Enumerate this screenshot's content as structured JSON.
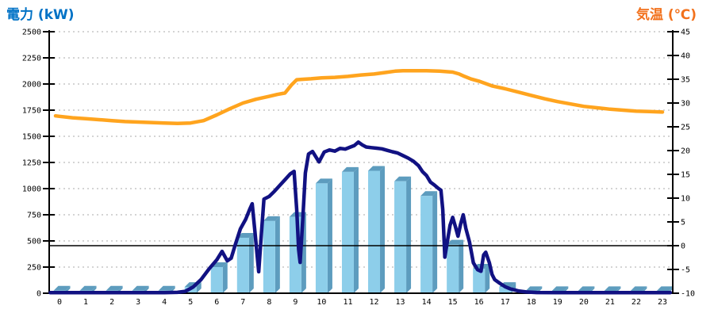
{
  "chart_data": {
    "type": "combo",
    "title": "",
    "left_axis": {
      "title": "電力 (kW)",
      "min": 0,
      "max": 2500,
      "step": 250,
      "tick_labels": [
        "0",
        "250",
        "500",
        "750",
        "1000",
        "1250",
        "1500",
        "1750",
        "2000",
        "2250",
        "2500"
      ]
    },
    "right_axis": {
      "title": "気温 (℃)",
      "min": -10,
      "max": 45,
      "step": 5,
      "tick_labels": [
        "-10",
        "-5",
        "0",
        "5",
        "10",
        "15",
        "20",
        "25",
        "30",
        "35",
        "40",
        "45"
      ]
    },
    "x_axis": {
      "tick_labels": [
        "0",
        "1",
        "2",
        "3",
        "4",
        "5",
        "6",
        "7",
        "8",
        "9",
        "10",
        "11",
        "12",
        "13",
        "14",
        "15",
        "16",
        "17",
        "18",
        "19",
        "20",
        "21",
        "22",
        "23"
      ]
    },
    "grid": {
      "on": true,
      "dashed": true
    },
    "zero_celsius_reference_line": 0,
    "series": [
      {
        "name": "power-bars-kw",
        "type": "bar",
        "axis": "left",
        "values": [
          25,
          25,
          25,
          25,
          25,
          60,
          250,
          530,
          690,
          730,
          1050,
          1160,
          1170,
          1070,
          930,
          465,
          235,
          60,
          20,
          20,
          20,
          20,
          20,
          20
        ]
      },
      {
        "name": "power-line-kw",
        "type": "line",
        "axis": "left",
        "points": [
          [
            -0.35,
            5
          ],
          [
            0,
            5
          ],
          [
            0.5,
            5
          ],
          [
            1,
            5
          ],
          [
            1.5,
            5
          ],
          [
            2,
            5
          ],
          [
            2.5,
            5
          ],
          [
            3,
            5
          ],
          [
            3.5,
            5
          ],
          [
            4,
            5
          ],
          [
            4.5,
            8
          ],
          [
            4.8,
            18
          ],
          [
            5.1,
            60
          ],
          [
            5.4,
            130
          ],
          [
            5.7,
            230
          ],
          [
            6.0,
            320
          ],
          [
            6.2,
            400
          ],
          [
            6.4,
            310
          ],
          [
            6.55,
            335
          ],
          [
            6.7,
            460
          ],
          [
            6.9,
            615
          ],
          [
            7.1,
            705
          ],
          [
            7.25,
            800
          ],
          [
            7.35,
            855
          ],
          [
            7.45,
            600
          ],
          [
            7.6,
            205
          ],
          [
            7.7,
            560
          ],
          [
            7.8,
            900
          ],
          [
            8.0,
            925
          ],
          [
            8.2,
            975
          ],
          [
            8.4,
            1030
          ],
          [
            8.6,
            1085
          ],
          [
            8.8,
            1140
          ],
          [
            8.95,
            1165
          ],
          [
            9.05,
            800
          ],
          [
            9.12,
            420
          ],
          [
            9.18,
            295
          ],
          [
            9.28,
            700
          ],
          [
            9.38,
            1150
          ],
          [
            9.5,
            1330
          ],
          [
            9.65,
            1355
          ],
          [
            9.9,
            1255
          ],
          [
            10.1,
            1350
          ],
          [
            10.3,
            1370
          ],
          [
            10.5,
            1358
          ],
          [
            10.7,
            1385
          ],
          [
            10.9,
            1378
          ],
          [
            11.1,
            1398
          ],
          [
            11.25,
            1412
          ],
          [
            11.4,
            1445
          ],
          [
            11.55,
            1418
          ],
          [
            11.7,
            1398
          ],
          [
            11.9,
            1392
          ],
          [
            12.1,
            1386
          ],
          [
            12.3,
            1380
          ],
          [
            12.5,
            1366
          ],
          [
            12.7,
            1352
          ],
          [
            12.9,
            1340
          ],
          [
            13.1,
            1316
          ],
          [
            13.3,
            1292
          ],
          [
            13.5,
            1262
          ],
          [
            13.7,
            1218
          ],
          [
            13.85,
            1162
          ],
          [
            14.0,
            1125
          ],
          [
            14.15,
            1062
          ],
          [
            14.3,
            1035
          ],
          [
            14.45,
            1002
          ],
          [
            14.55,
            985
          ],
          [
            14.62,
            800
          ],
          [
            14.7,
            345
          ],
          [
            14.8,
            500
          ],
          [
            14.9,
            650
          ],
          [
            15.0,
            725
          ],
          [
            15.1,
            640
          ],
          [
            15.2,
            545
          ],
          [
            15.3,
            660
          ],
          [
            15.4,
            750
          ],
          [
            15.5,
            620
          ],
          [
            15.64,
            490
          ],
          [
            15.79,
            290
          ],
          [
            15.95,
            225
          ],
          [
            16.08,
            210
          ],
          [
            16.18,
            365
          ],
          [
            16.26,
            392
          ],
          [
            16.4,
            290
          ],
          [
            16.5,
            180
          ],
          [
            16.6,
            130
          ],
          [
            16.8,
            95
          ],
          [
            17.0,
            62
          ],
          [
            17.2,
            42
          ],
          [
            17.5,
            22
          ],
          [
            17.8,
            12
          ],
          [
            18.2,
            7
          ],
          [
            19,
            6
          ],
          [
            20,
            6
          ],
          [
            21,
            6
          ],
          [
            22,
            6
          ],
          [
            23,
            6
          ],
          [
            23.3,
            6
          ]
        ]
      },
      {
        "name": "temperature-line-c",
        "type": "line",
        "axis": "right",
        "points": [
          [
            -0.15,
            27.3
          ],
          [
            0,
            27.2
          ],
          [
            0.5,
            26.9
          ],
          [
            1,
            26.7
          ],
          [
            1.5,
            26.5
          ],
          [
            2,
            26.3
          ],
          [
            2.5,
            26.1
          ],
          [
            3,
            26.0
          ],
          [
            3.5,
            25.9
          ],
          [
            4,
            25.8
          ],
          [
            4.5,
            25.7
          ],
          [
            5,
            25.8
          ],
          [
            5.5,
            26.3
          ],
          [
            6,
            27.5
          ],
          [
            6.5,
            28.8
          ],
          [
            7,
            30.0
          ],
          [
            7.5,
            30.8
          ],
          [
            8,
            31.4
          ],
          [
            8.3,
            31.8
          ],
          [
            8.6,
            32.1
          ],
          [
            8.85,
            33.8
          ],
          [
            9.05,
            34.9
          ],
          [
            9.3,
            35.0
          ],
          [
            9.6,
            35.1
          ],
          [
            10,
            35.3
          ],
          [
            10.5,
            35.4
          ],
          [
            11,
            35.6
          ],
          [
            11.5,
            35.9
          ],
          [
            12,
            36.1
          ],
          [
            12.4,
            36.4
          ],
          [
            12.8,
            36.7
          ],
          [
            13.1,
            36.8
          ],
          [
            13.6,
            36.8
          ],
          [
            14,
            36.8
          ],
          [
            14.5,
            36.7
          ],
          [
            15,
            36.5
          ],
          [
            15.25,
            36.1
          ],
          [
            15.45,
            35.6
          ],
          [
            15.7,
            35.05
          ],
          [
            16,
            34.6
          ],
          [
            16.5,
            33.6
          ],
          [
            17,
            33.0
          ],
          [
            17.5,
            32.3
          ],
          [
            18,
            31.6
          ],
          [
            18.5,
            30.9
          ],
          [
            19,
            30.3
          ],
          [
            19.5,
            29.8
          ],
          [
            20,
            29.3
          ],
          [
            20.5,
            29.0
          ],
          [
            21,
            28.7
          ],
          [
            21.5,
            28.5
          ],
          [
            22,
            28.3
          ],
          [
            22.5,
            28.2
          ],
          [
            23,
            28.1
          ]
        ]
      }
    ]
  },
  "colors": {
    "left_title": "#0072C6",
    "right_title": "#F2711C",
    "bar_front": "#8DCEEA",
    "bar_side": "#5D9CBE",
    "bar_top": "#5D9CBE",
    "power_line": "#111182",
    "temperature_line": "#FFA41E",
    "grid": "#A8A8A8",
    "axis": "#000000"
  }
}
